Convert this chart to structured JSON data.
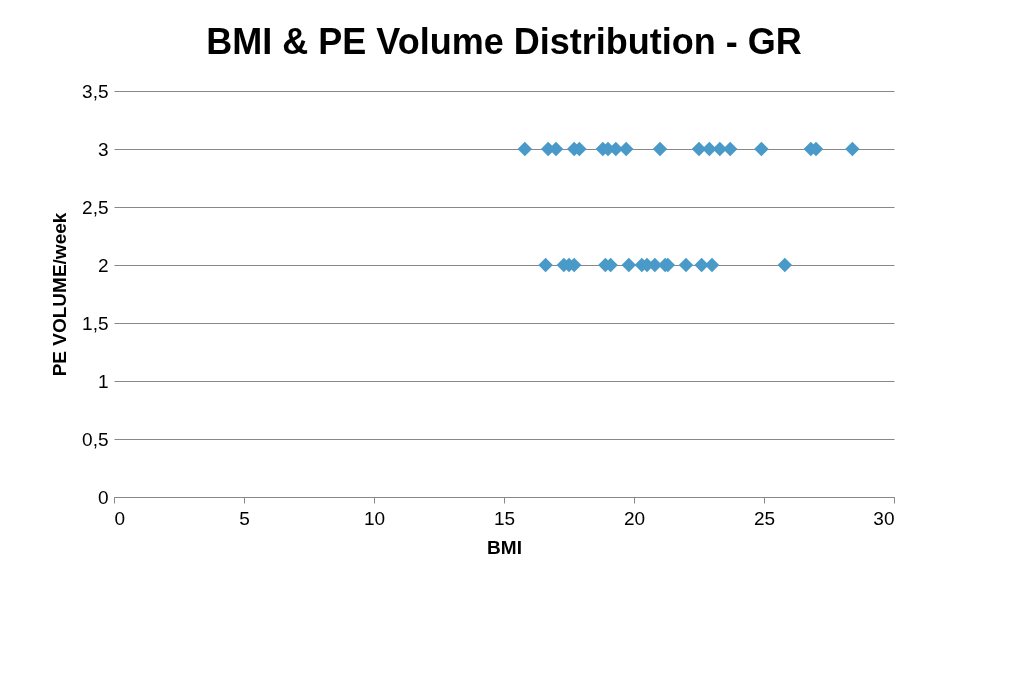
{
  "chart_data": {
    "type": "scatter",
    "title": "BMI & PE Volume Distribution - GR",
    "xlabel": "BMI",
    "ylabel": "PE VOLUME/week",
    "series": [
      {
        "color": "#4a9ac9",
        "x": [
          15.8,
          16.7,
          17.0,
          17.7,
          17.9,
          18.8,
          19.0,
          19.3,
          19.7,
          21.0,
          22.5,
          22.9,
          23.3,
          23.7,
          24.9,
          26.8,
          27.0,
          28.4,
          16.6,
          17.3,
          17.5,
          17.7,
          18.9,
          19.1,
          19.8,
          20.3,
          20.5,
          20.8,
          21.2,
          21.3,
          22.0,
          22.6,
          23.0,
          25.8
        ],
        "values": [
          3,
          3,
          3,
          3,
          3,
          3,
          3,
          3,
          3,
          3,
          3,
          3,
          3,
          3,
          3,
          3,
          3,
          3,
          2,
          2,
          2,
          2,
          2,
          2,
          2,
          2,
          2,
          2,
          2,
          2,
          2,
          2,
          2,
          2
        ]
      }
    ],
    "xlim": [
      0,
      30
    ],
    "xticks": [
      0,
      5,
      10,
      15,
      20,
      25,
      30
    ],
    "ylim": [
      0,
      3.5
    ],
    "yticks": [
      0,
      {
        "value": 0.5,
        "label": "0,5"
      },
      1,
      {
        "value": 1.5,
        "label": "1,5"
      },
      2,
      {
        "value": 2.5,
        "label": "2,5"
      },
      3,
      {
        "value": 3.5,
        "label": "3,5"
      }
    ],
    "grid": "y",
    "marker": "diamond"
  }
}
